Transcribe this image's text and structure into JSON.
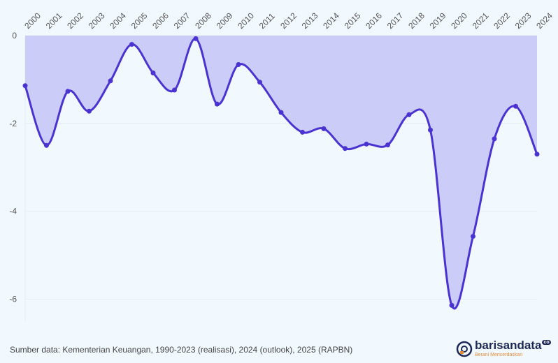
{
  "chart_data": {
    "type": "area",
    "title": "",
    "xlabel": "",
    "ylabel": "",
    "x": [
      "2000",
      "2001",
      "2002",
      "2003",
      "2004",
      "2005",
      "2006",
      "2007",
      "2008",
      "2009",
      "2010",
      "2011",
      "2012",
      "2013",
      "2014",
      "2015",
      "2016",
      "2017",
      "2018",
      "2019",
      "2020",
      "2021",
      "2022",
      "2023",
      "2024"
    ],
    "values": [
      -1.14,
      -2.5,
      -1.27,
      -1.72,
      -1.03,
      -0.2,
      -0.85,
      -1.24,
      -0.07,
      -1.56,
      -0.66,
      -1.06,
      -1.75,
      -2.2,
      -2.12,
      -2.57,
      -2.47,
      -2.49,
      -1.8,
      -2.15,
      -6.14,
      -4.57,
      -2.35,
      -1.61,
      -2.7
    ],
    "yticks": [
      0,
      -2,
      -4,
      -6
    ],
    "ytick_labels": [
      "0",
      "-2",
      "-4",
      "-6"
    ],
    "ylim": [
      -6.5,
      0
    ],
    "grid": true,
    "x_axis_position": "top",
    "colors": {
      "line": "#4a33d1",
      "fill": "#ccccf8",
      "background": "#f1f8fe"
    }
  },
  "footer": {
    "source": "Sumber data: Kementerian Keuangan, 1990-2023 (realisasi), 2024 (outlook), 2025 (RAPBN)",
    "logo_name": "barisandata",
    "logo_suffix": "co",
    "logo_tagline": "Berani Mencerdaskan"
  }
}
